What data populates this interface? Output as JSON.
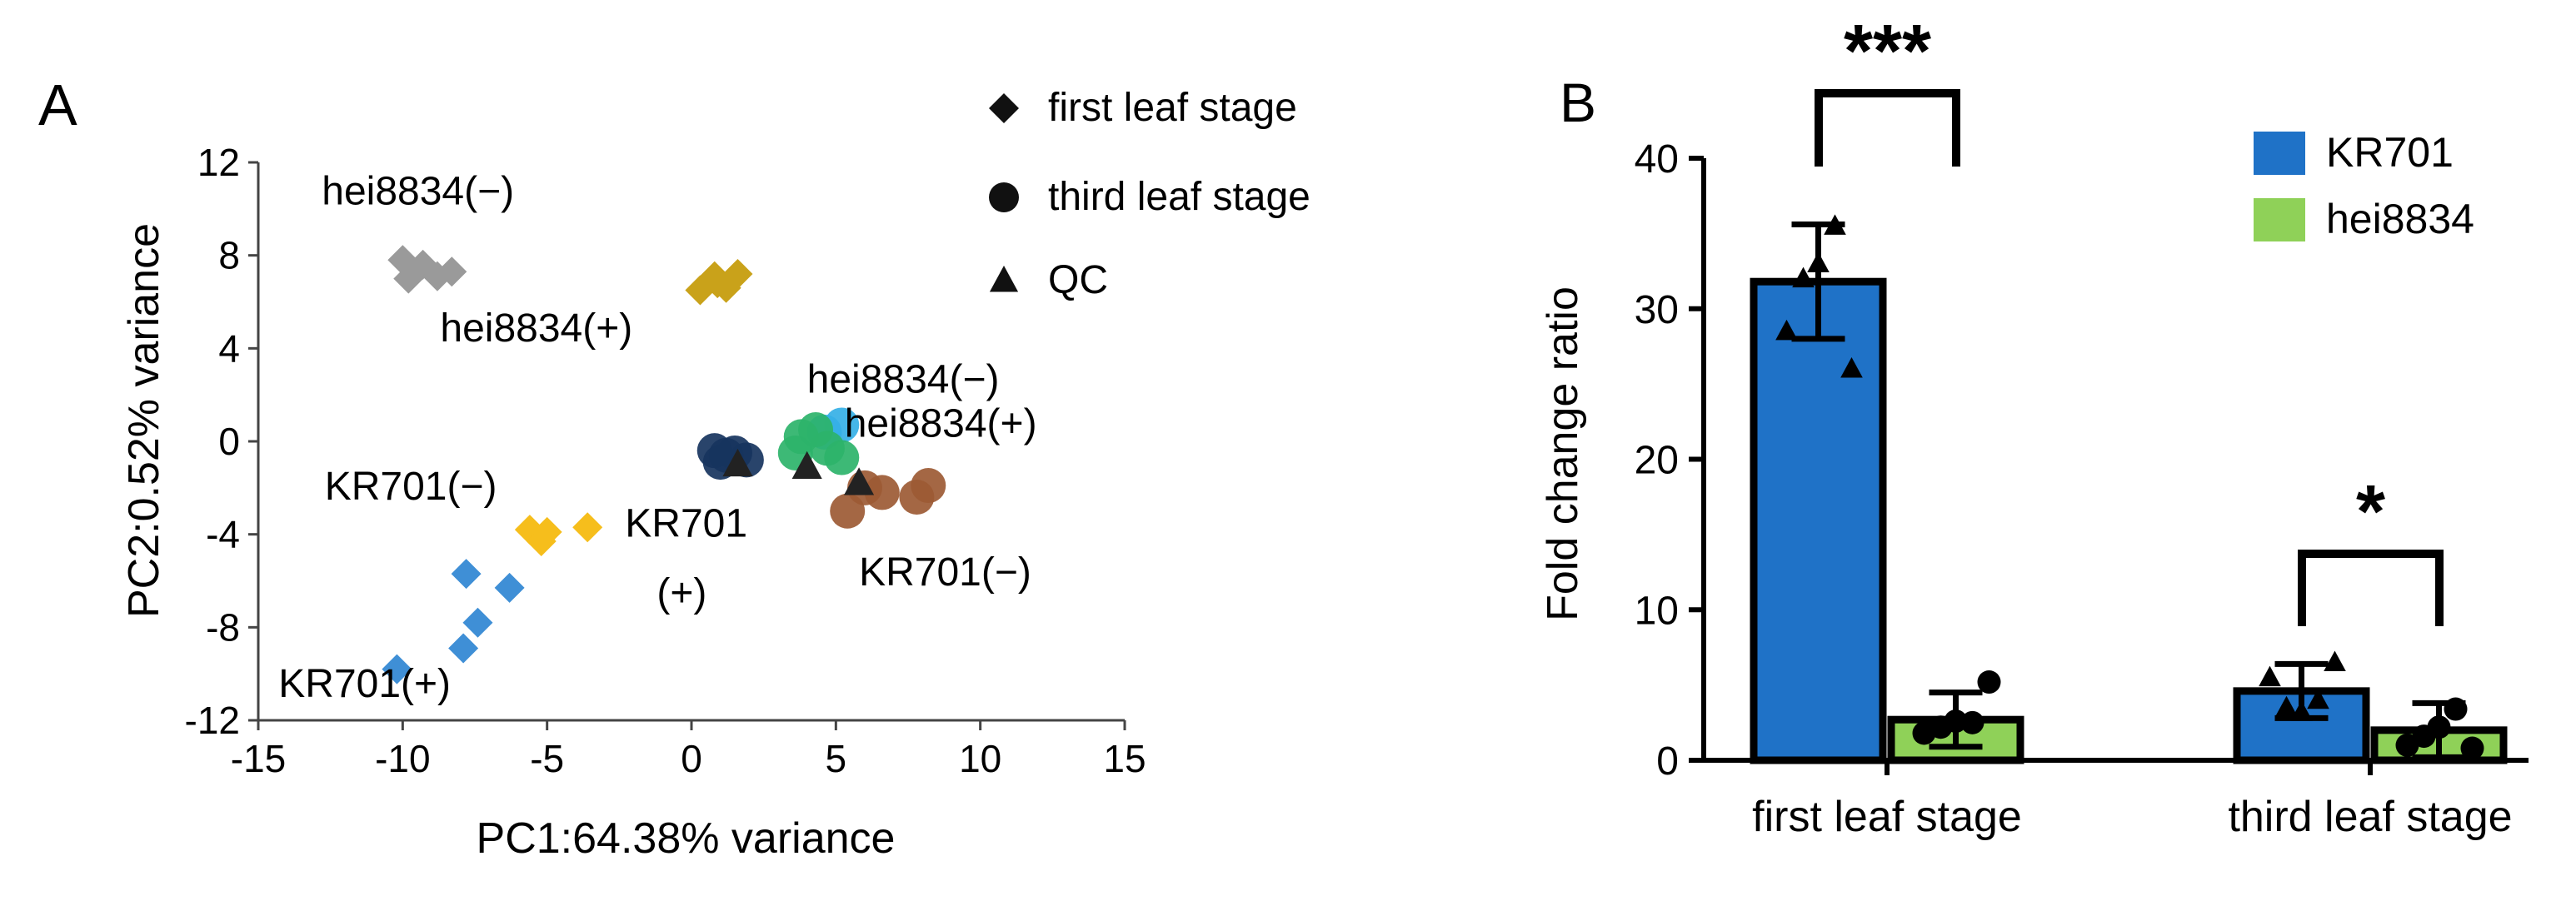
{
  "chart_data": [
    {
      "type": "scatter",
      "panel_label": "A",
      "xlabel": "PC1:64.38% variance",
      "ylabel": "PC2:0.52% variance",
      "xlim": [
        -15,
        15
      ],
      "ylim": [
        -12,
        12
      ],
      "x_ticks": [
        -15,
        -10,
        -5,
        0,
        5,
        10,
        15
      ],
      "y_ticks": [
        -12,
        -8,
        -4,
        0,
        4,
        8,
        12
      ],
      "legend": {
        "placement": "top-right",
        "entries": [
          {
            "marker": "diamond",
            "label": "first leaf stage"
          },
          {
            "marker": "circle",
            "label": "third leaf stage"
          },
          {
            "marker": "triangle",
            "label": "QC"
          }
        ]
      },
      "series": [
        {
          "marker": "diamond",
          "color": "#9a9a9a",
          "points": [
            [
              -10,
              7.8
            ],
            [
              -9.3,
              7.6
            ],
            [
              -9.8,
              7
            ],
            [
              -8.8,
              7.1
            ],
            [
              -8.3,
              7.3
            ]
          ]
        },
        {
          "marker": "diamond",
          "color": "#c9a21a",
          "points": [
            [
              0.3,
              6.5
            ],
            [
              0.8,
              7.1
            ],
            [
              1.2,
              6.6
            ],
            [
              0.9,
              6.8
            ],
            [
              1.6,
              7.2
            ]
          ]
        },
        {
          "marker": "diamond",
          "color": "#f6be1c",
          "points": [
            [
              -5.6,
              -3.8
            ],
            [
              -5.2,
              -4.3
            ],
            [
              -5,
              -3.9
            ],
            [
              -3.6,
              -3.7
            ]
          ]
        },
        {
          "marker": "diamond",
          "color": "#3f8fd6",
          "points": [
            [
              -7.8,
              -5.7
            ],
            [
              -6.3,
              -6.3
            ],
            [
              -7.4,
              -7.8
            ],
            [
              -7.9,
              -8.9
            ],
            [
              -10.2,
              -9.8
            ]
          ]
        },
        {
          "marker": "circle",
          "color": "#17345e",
          "points": [
            [
              0.8,
              -0.4
            ],
            [
              1.2,
              -0.6
            ],
            [
              1.5,
              -0.5
            ],
            [
              1.9,
              -0.8
            ],
            [
              1.0,
              -0.9
            ]
          ]
        },
        {
          "marker": "circle",
          "color": "#35b0e6",
          "points": [
            [
              4.6,
              0.4
            ],
            [
              5.2,
              0.7
            ]
          ]
        },
        {
          "marker": "circle",
          "color": "#2db36a",
          "points": [
            [
              3.8,
              0.2
            ],
            [
              4.3,
              0.5
            ],
            [
              4.7,
              -0.3
            ],
            [
              5.2,
              -0.7
            ],
            [
              3.6,
              -0.5
            ]
          ]
        },
        {
          "marker": "circle",
          "color": "#9c5a34",
          "points": [
            [
              6.0,
              -2.0
            ],
            [
              6.6,
              -2.2
            ],
            [
              7.8,
              -2.4
            ],
            [
              8.2,
              -1.9
            ],
            [
              5.4,
              -3.0
            ]
          ]
        },
        {
          "marker": "triangle",
          "color": "#222222",
          "points": [
            [
              1.6,
              -1.0
            ],
            [
              4.0,
              -1.1
            ],
            [
              5.8,
              -1.8
            ]
          ]
        }
      ],
      "annotations": [
        {
          "text": "hei8834(−)",
          "x": -12.8,
          "y": 10.2
        },
        {
          "text": "hei8834(+)",
          "x": -8.7,
          "y": 4.3
        },
        {
          "text": "hei8834(−)",
          "x": 4.0,
          "y": 2.1
        },
        {
          "text": "hei8834(+)",
          "x": 5.3,
          "y": 0.2
        },
        {
          "text": "KR701(−)",
          "x": -12.7,
          "y": -2.5
        },
        {
          "text": "KR701",
          "x": -2.3,
          "y": -4.1
        },
        {
          "text": "(+)",
          "x": -1.2,
          "y": -7.1
        },
        {
          "text": "KR701(−)",
          "x": 5.8,
          "y": -6.2
        },
        {
          "text": "KR701(+)",
          "x": -14.3,
          "y": -11.0
        }
      ]
    },
    {
      "type": "bar",
      "panel_label": "B",
      "categories": [
        "first leaf stage",
        "third leaf stage"
      ],
      "ylabel": "Fold change ratio",
      "ylim": [
        0,
        40
      ],
      "y_ticks": [
        0,
        10,
        20,
        30,
        40
      ],
      "legend": {
        "placement": "top-right"
      },
      "series": [
        {
          "name": "KR701",
          "color": "#1f72c7",
          "marker": "triangle",
          "values": [
            31.8,
            4.6
          ],
          "errors": [
            3.8,
            1.8
          ],
          "points": [
            [
              28.5,
              32,
              33,
              35.5,
              26
            ],
            [
              5.5,
              3.5,
              3.2,
              4,
              6.5
            ]
          ]
        },
        {
          "name": "hei8834",
          "color": "#8fd158",
          "marker": "circle",
          "values": [
            2.7,
            2.0
          ],
          "errors": [
            1.8,
            1.8
          ],
          "points": [
            [
              1.8,
              2.2,
              2.6,
              2.5,
              5.2
            ],
            [
              1.0,
              1.6,
              2.2,
              3.4,
              0.8
            ]
          ]
        }
      ],
      "significance": [
        {
          "category": "first leaf stage",
          "label": "***"
        },
        {
          "category": "third leaf stage",
          "label": "*"
        }
      ]
    }
  ]
}
